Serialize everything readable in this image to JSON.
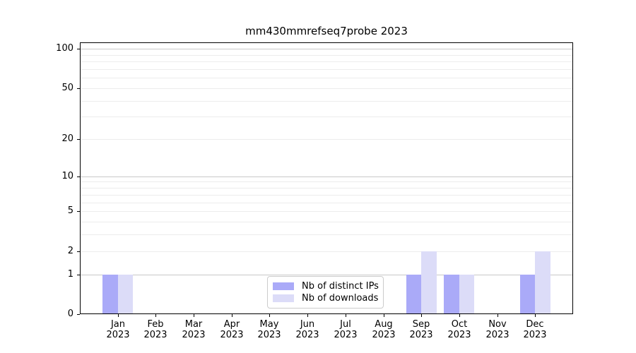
{
  "title": "mm430mmrefseq7probe 2023",
  "legend": {
    "items": [
      {
        "label": "Nb of distinct IPs",
        "color": "#aaaaf8"
      },
      {
        "label": "Nb of downloads",
        "color": "#dcdcf8"
      }
    ],
    "position": "lower center"
  },
  "chart_data": {
    "type": "bar",
    "title": "mm430mmrefseq7probe 2023",
    "categories": [
      "Jan",
      "Feb",
      "Mar",
      "Apr",
      "May",
      "Jun",
      "Jul",
      "Aug",
      "Sep",
      "Oct",
      "Nov",
      "Dec"
    ],
    "category_year_line": "2023",
    "series": [
      {
        "name": "Nb of distinct IPs",
        "color": "#aaaaf8",
        "values": [
          1,
          0,
          0,
          0,
          0,
          0,
          0,
          0,
          1,
          1,
          0,
          1
        ]
      },
      {
        "name": "Nb of downloads",
        "color": "#dcdcf8",
        "values": [
          1,
          0,
          0,
          0,
          0,
          0,
          0,
          0,
          2,
          1,
          0,
          2
        ]
      }
    ],
    "xlabel": "",
    "ylabel": "",
    "y_scale": "log1p (y position proportional to log10(value+1))",
    "y_ticks": [
      0,
      1,
      2,
      5,
      10,
      20,
      50,
      100
    ],
    "y_major_gridlines": [
      1,
      10,
      100
    ],
    "y_minor_gridlines": [
      2,
      3,
      4,
      5,
      6,
      7,
      8,
      9,
      20,
      30,
      40,
      50,
      60,
      70,
      80,
      90
    ],
    "ylim": [
      0,
      112
    ],
    "grid": "horizontal, major and minor",
    "legend_position": "lower center",
    "colors": {
      "major_grid": "#c8c8c8",
      "minor_grid": "#ececec",
      "axis": "#000000",
      "background": "#ffffff"
    }
  }
}
